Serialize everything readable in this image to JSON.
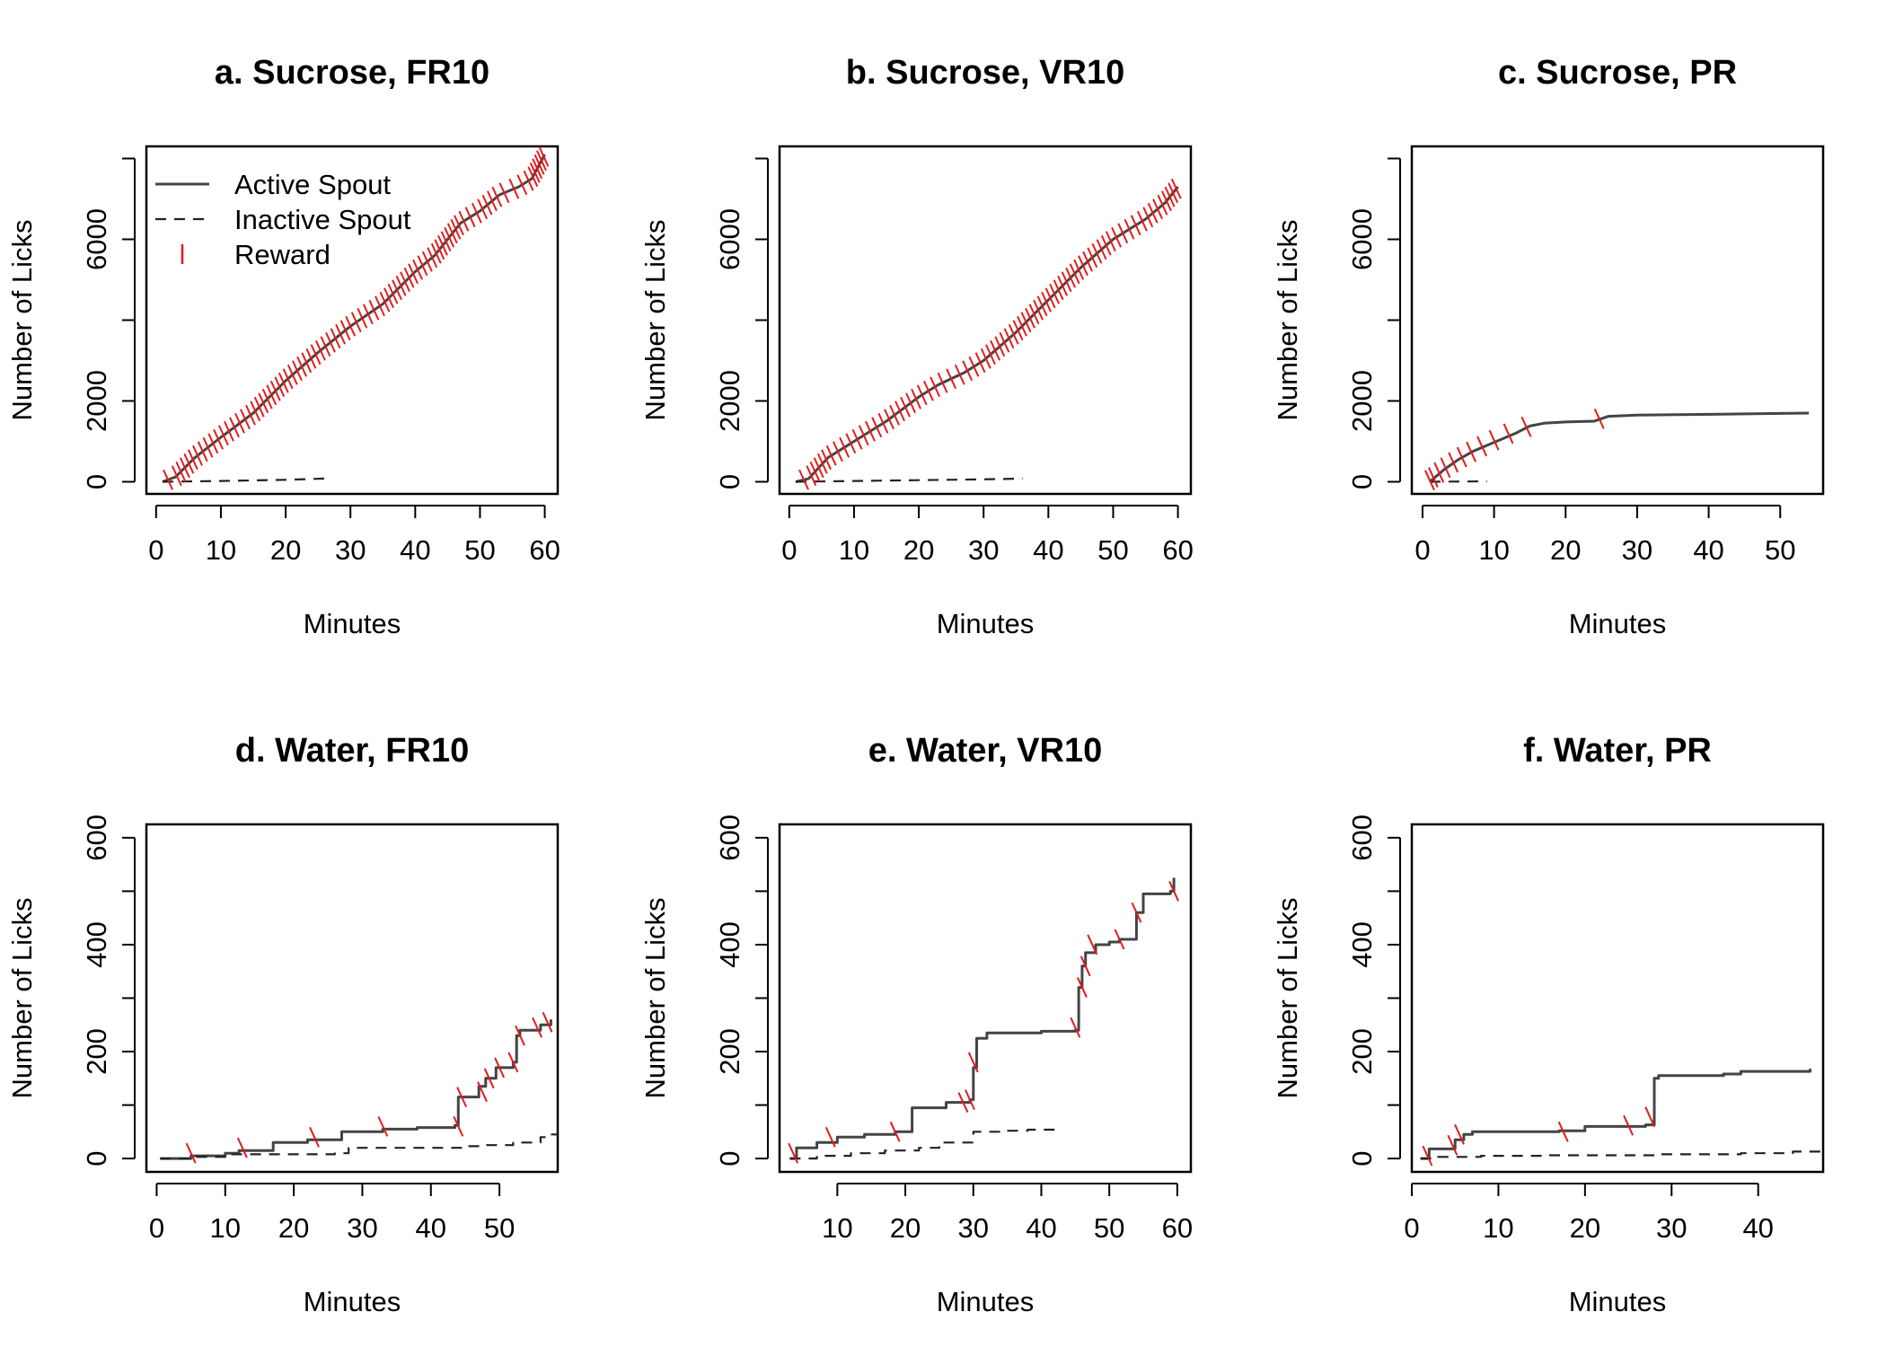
{
  "figure": {
    "legend": {
      "items": [
        {
          "label": "Active Spout",
          "style": "solid"
        },
        {
          "label": "Inactive Spout",
          "style": "dashed"
        },
        {
          "label": "Reward",
          "style": "tick"
        }
      ],
      "placement": "top-left of panel a"
    },
    "colors": {
      "active": "#444444",
      "inactive": "#222222",
      "reward": "#e31a1c",
      "axis": "#000000"
    }
  },
  "chart_data": [
    {
      "type": "line",
      "title": "a. Sucrose, FR10",
      "xlabel": "Minutes",
      "ylabel": "Number of Licks",
      "xlim": [
        -1.5,
        62
      ],
      "ylim": [
        -300,
        8300
      ],
      "xticks": [
        0,
        10,
        20,
        30,
        40,
        50,
        60
      ],
      "yticks": [
        0,
        2000,
        4000,
        6000,
        8000
      ],
      "ytick_labels": [
        "0",
        "2000",
        "",
        "6000",
        ""
      ],
      "grid": false,
      "series": [
        {
          "name": "Active Spout",
          "style": "solid",
          "step": false,
          "x": [
            1,
            3,
            6,
            10,
            15,
            20,
            25,
            30,
            35,
            40,
            43,
            45,
            47,
            50,
            53,
            56,
            58,
            60
          ],
          "y": [
            0,
            120,
            600,
            1100,
            1700,
            2500,
            3200,
            3850,
            4400,
            5200,
            5600,
            6000,
            6400,
            6700,
            7100,
            7300,
            7500,
            8100
          ]
        },
        {
          "name": "Inactive Spout",
          "style": "dashed",
          "step": false,
          "x": [
            1,
            10,
            20,
            26
          ],
          "y": [
            0,
            20,
            50,
            80
          ]
        },
        {
          "name": "Reward",
          "style": "ticks",
          "reward_every": 100
        }
      ]
    },
    {
      "type": "line",
      "title": "b. Sucrose, VR10",
      "xlabel": "Minutes",
      "ylabel": "Number of Licks",
      "xlim": [
        -1.5,
        62
      ],
      "ylim": [
        -300,
        8300
      ],
      "xticks": [
        0,
        10,
        20,
        30,
        40,
        50,
        60
      ],
      "yticks": [
        0,
        2000,
        4000,
        6000,
        8000
      ],
      "ytick_labels": [
        "0",
        "2000",
        "",
        "6000",
        ""
      ],
      "grid": false,
      "series": [
        {
          "name": "Active Spout",
          "style": "solid",
          "step": false,
          "x": [
            1,
            3,
            6,
            10,
            15,
            20,
            23,
            27,
            30,
            35,
            40,
            45,
            50,
            55,
            58,
            60
          ],
          "y": [
            0,
            80,
            600,
            1000,
            1500,
            2100,
            2400,
            2700,
            3000,
            3700,
            4500,
            5300,
            6000,
            6500,
            6900,
            7300
          ]
        },
        {
          "name": "Inactive Spout",
          "style": "dashed",
          "step": false,
          "x": [
            1,
            10,
            20,
            30,
            36
          ],
          "y": [
            0,
            20,
            40,
            60,
            80
          ]
        },
        {
          "name": "Reward",
          "style": "ticks",
          "reward_every": 100
        }
      ]
    },
    {
      "type": "line",
      "title": "c. Sucrose, PR",
      "xlabel": "Minutes",
      "ylabel": "Number of Licks",
      "xlim": [
        -1.5,
        56
      ],
      "ylim": [
        -300,
        8300
      ],
      "xticks": [
        0,
        10,
        20,
        30,
        40,
        50
      ],
      "yticks": [
        0,
        2000,
        4000,
        6000,
        8000
      ],
      "ytick_labels": [
        "0",
        "2000",
        "",
        "6000",
        ""
      ],
      "grid": false,
      "series": [
        {
          "name": "Active Spout",
          "style": "solid",
          "step": false,
          "x": [
            1,
            2,
            3,
            5,
            7,
            9,
            11,
            13,
            15,
            17,
            20,
            24,
            26,
            30,
            40,
            50,
            54
          ],
          "y": [
            0,
            150,
            300,
            550,
            750,
            900,
            1050,
            1200,
            1380,
            1450,
            1480,
            1500,
            1620,
            1650,
            1670,
            1690,
            1700
          ]
        },
        {
          "name": "Inactive Spout",
          "style": "dashed",
          "step": false,
          "x": [
            1,
            9
          ],
          "y": [
            0,
            10
          ]
        },
        {
          "name": "Reward",
          "style": "ticks",
          "x": [
            1.0,
            1.5,
            2.3,
            3.2,
            4.3,
            5.5,
            6.8,
            8.3,
            10.0,
            12.0,
            14.5,
            24.7
          ],
          "y": [
            40,
            110,
            230,
            350,
            480,
            610,
            740,
            880,
            1030,
            1190,
            1360,
            1560
          ]
        }
      ]
    },
    {
      "type": "line",
      "title": "d. Water, FR10",
      "xlabel": "Minutes",
      "ylabel": "Number of Licks",
      "xlim": [
        -1.5,
        58.5
      ],
      "ylim": [
        -25,
        625
      ],
      "xticks": [
        0,
        10,
        20,
        30,
        40,
        50
      ],
      "yticks": [
        0,
        100,
        200,
        300,
        400,
        500,
        600
      ],
      "ytick_labels": [
        "0",
        "",
        "200",
        "",
        "400",
        "",
        "600"
      ],
      "grid": false,
      "series": [
        {
          "name": "Active Spout",
          "style": "solid",
          "step": true,
          "x": [
            0.5,
            5,
            10,
            12,
            17,
            22,
            27,
            33,
            38,
            43.5,
            44,
            47,
            48,
            49.5,
            52,
            52.5,
            53,
            56,
            57.5
          ],
          "y": [
            0,
            5,
            10,
            15,
            30,
            35,
            50,
            55,
            58,
            62,
            115,
            135,
            150,
            170,
            180,
            230,
            240,
            250,
            260
          ]
        },
        {
          "name": "Inactive Spout",
          "style": "dashed",
          "step": true,
          "x": [
            0.5,
            5,
            10,
            26,
            28,
            45,
            48,
            52,
            56,
            57.5,
            58.5
          ],
          "y": [
            0,
            3,
            8,
            10,
            20,
            23,
            25,
            30,
            40,
            45,
            48
          ]
        },
        {
          "name": "Reward",
          "style": "ticks",
          "x": [
            5,
            12.5,
            23,
            33,
            44,
            44.5,
            47.5,
            48.5,
            50,
            52,
            53,
            55.5,
            57
          ],
          "y": [
            10,
            20,
            40,
            60,
            60,
            115,
            125,
            150,
            170,
            180,
            230,
            245,
            255
          ]
        }
      ]
    },
    {
      "type": "line",
      "title": "e. Water, VR10",
      "xlabel": "Minutes",
      "ylabel": "Number of Licks",
      "xlim": [
        1.5,
        62
      ],
      "ylim": [
        -25,
        625
      ],
      "xticks": [
        10,
        20,
        30,
        40,
        50,
        60
      ],
      "yticks": [
        0,
        100,
        200,
        300,
        400,
        500,
        600
      ],
      "ytick_labels": [
        "0",
        "",
        "200",
        "",
        "400",
        "",
        "600"
      ],
      "grid": false,
      "series": [
        {
          "name": "Active Spout",
          "style": "solid",
          "step": true,
          "x": [
            3,
            4,
            7,
            10,
            14,
            18.5,
            21,
            26,
            29.5,
            30,
            30.5,
            32,
            40,
            45,
            45.5,
            46,
            46.5,
            48,
            50,
            51.5,
            54,
            55,
            59,
            59.5
          ],
          "y": [
            0,
            20,
            30,
            40,
            45,
            50,
            95,
            105,
            110,
            170,
            225,
            235,
            238,
            240,
            320,
            360,
            385,
            400,
            405,
            410,
            460,
            495,
            500,
            525
          ]
        },
        {
          "name": "Inactive Spout",
          "style": "dashed",
          "step": true,
          "x": [
            3,
            7,
            12,
            17,
            22,
            25,
            30,
            34,
            38,
            43
          ],
          "y": [
            0,
            5,
            10,
            15,
            20,
            30,
            50,
            52,
            54,
            55
          ]
        },
        {
          "name": "Reward",
          "style": "ticks",
          "x": [
            3.5,
            9,
            18.5,
            28.5,
            29.5,
            30,
            45,
            46,
            46.5,
            47.5,
            51.5,
            54,
            59.5
          ],
          "y": [
            10,
            40,
            50,
            105,
            110,
            180,
            245,
            320,
            360,
            400,
            410,
            460,
            500
          ]
        }
      ]
    },
    {
      "type": "line",
      "title": "f. Water, PR",
      "xlabel": "Minutes",
      "ylabel": "Number of Licks",
      "xlim": [
        0,
        47.5
      ],
      "ylim": [
        -25,
        625
      ],
      "xticks": [
        0,
        10,
        20,
        30,
        40
      ],
      "yticks": [
        0,
        100,
        200,
        300,
        400,
        500,
        600
      ],
      "ytick_labels": [
        "0",
        "",
        "200",
        "",
        "400",
        "",
        "600"
      ],
      "grid": false,
      "series": [
        {
          "name": "Active Spout",
          "style": "solid",
          "step": true,
          "x": [
            1,
            2,
            5,
            6,
            7,
            10,
            17,
            20,
            27,
            28,
            28.5,
            36,
            38,
            46
          ],
          "y": [
            0,
            18,
            35,
            45,
            50,
            50,
            52,
            60,
            63,
            150,
            155,
            158,
            163,
            168
          ]
        },
        {
          "name": "Inactive Spout",
          "style": "dashed",
          "step": true,
          "x": [
            1,
            3,
            8,
            15,
            28,
            38,
            44,
            47.5
          ],
          "y": [
            0,
            3,
            5,
            6,
            8,
            10,
            13,
            16
          ]
        },
        {
          "name": "Reward",
          "style": "ticks",
          "x": [
            1.8,
            4.7,
            5.5,
            17.5,
            25,
            27.5
          ],
          "y": [
            5,
            25,
            45,
            50,
            62,
            78
          ]
        }
      ]
    }
  ]
}
